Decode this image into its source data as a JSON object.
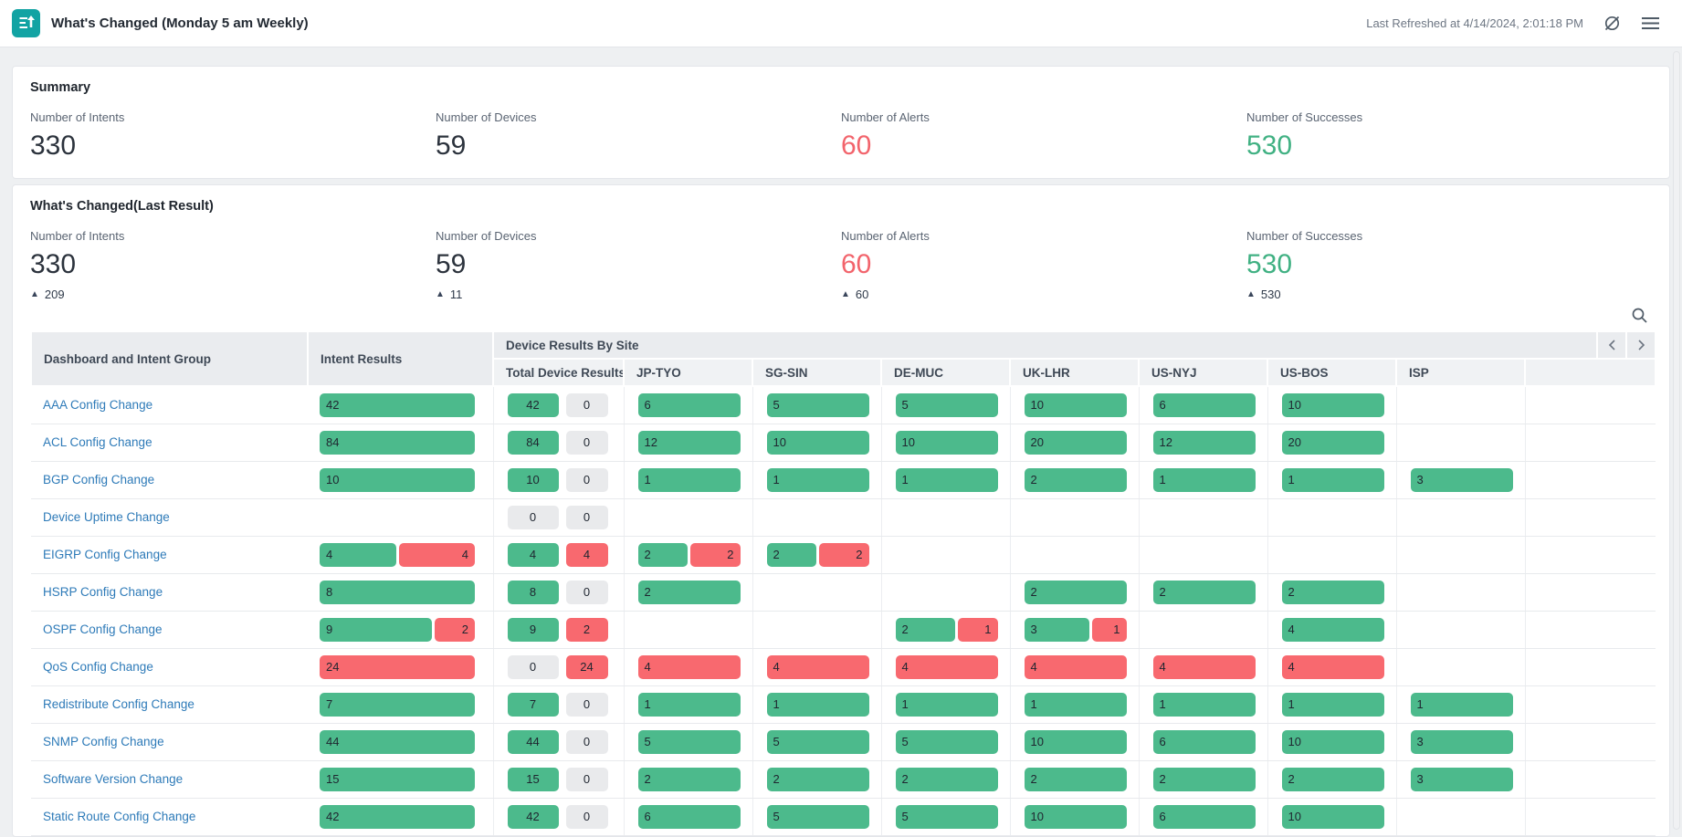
{
  "colors": {
    "teal": "#12a3a3",
    "green": "#4cba8c",
    "red": "#f8696f",
    "grey_pill": "#e9eaec",
    "link": "#2d7ab8",
    "alert": "#f2646c",
    "success": "#41b183"
  },
  "header": {
    "title": "What's Changed (Monday 5 am Weekly)",
    "last_refreshed": "Last Refreshed at 4/14/2024, 2:01:18 PM",
    "icons": [
      "report-export-icon",
      "refresh-disabled-icon",
      "hamburger-menu-icon"
    ]
  },
  "summary": {
    "title": "Summary",
    "metrics": [
      {
        "label": "Number of Intents",
        "value": "330"
      },
      {
        "label": "Number of Devices",
        "value": "59"
      },
      {
        "label": "Number of Alerts",
        "value": "60"
      },
      {
        "label": "Number of Successes",
        "value": "530"
      }
    ]
  },
  "last_result": {
    "title": "What's Changed(Last Result)",
    "delta_symbol": "▲",
    "metrics": [
      {
        "label": "Number of Intents",
        "value": "330",
        "delta": "209"
      },
      {
        "label": "Number of Devices",
        "value": "59",
        "delta": "11"
      },
      {
        "label": "Number of Alerts",
        "value": "60",
        "delta": "60"
      },
      {
        "label": "Number of Successes",
        "value": "530",
        "delta": "530"
      }
    ]
  },
  "table": {
    "columns": {
      "intent_group": "Dashboard and Intent Group",
      "intent_results": "Intent Results",
      "group": "Device Results By Site",
      "sites": [
        "Total Device Results",
        "JP-TYO",
        "SG-SIN",
        "DE-MUC",
        "UK-LHR",
        "US-NYJ",
        "US-BOS",
        "ISP"
      ]
    },
    "icons": [
      "search-icon",
      "chevron-left-icon",
      "chevron-right-icon"
    ],
    "rows": [
      {
        "name": "AAA Config Change",
        "intent": [
          42,
          0
        ],
        "total": [
          42,
          0
        ],
        "sites": [
          [
            6,
            0
          ],
          [
            5,
            0
          ],
          [
            5,
            0
          ],
          [
            10,
            0
          ],
          [
            6,
            0
          ],
          [
            10,
            0
          ],
          null
        ]
      },
      {
        "name": "ACL Config Change",
        "intent": [
          84,
          0
        ],
        "total": [
          84,
          0
        ],
        "sites": [
          [
            12,
            0
          ],
          [
            10,
            0
          ],
          [
            10,
            0
          ],
          [
            20,
            0
          ],
          [
            12,
            0
          ],
          [
            20,
            0
          ],
          null
        ]
      },
      {
        "name": "BGP Config Change",
        "intent": [
          10,
          0
        ],
        "total": [
          10,
          0
        ],
        "sites": [
          [
            1,
            0
          ],
          [
            1,
            0
          ],
          [
            1,
            0
          ],
          [
            2,
            0
          ],
          [
            1,
            0
          ],
          [
            1,
            0
          ],
          [
            3,
            0
          ]
        ]
      },
      {
        "name": "Device Uptime Change",
        "intent": null,
        "total": [
          0,
          0
        ],
        "sites": [
          null,
          null,
          null,
          null,
          null,
          null,
          null
        ]
      },
      {
        "name": "EIGRP Config Change",
        "intent": [
          4,
          4
        ],
        "total": [
          4,
          4
        ],
        "sites": [
          [
            2,
            2
          ],
          [
            2,
            2
          ],
          null,
          null,
          null,
          null,
          null
        ]
      },
      {
        "name": "HSRP Config Change",
        "intent": [
          8,
          0
        ],
        "total": [
          8,
          0
        ],
        "sites": [
          [
            2,
            0
          ],
          null,
          null,
          [
            2,
            0
          ],
          [
            2,
            0
          ],
          [
            2,
            0
          ],
          null
        ]
      },
      {
        "name": "OSPF Config Change",
        "intent": [
          9,
          2
        ],
        "total": [
          9,
          2
        ],
        "sites": [
          null,
          null,
          [
            2,
            1
          ],
          [
            3,
            1
          ],
          null,
          [
            4,
            0
          ],
          null
        ]
      },
      {
        "name": "QoS Config Change",
        "intent": [
          0,
          24
        ],
        "total": [
          0,
          24
        ],
        "sites": [
          [
            0,
            4
          ],
          [
            0,
            4
          ],
          [
            0,
            4
          ],
          [
            0,
            4
          ],
          [
            0,
            4
          ],
          [
            0,
            4
          ],
          null
        ]
      },
      {
        "name": "Redistribute Config Change",
        "intent": [
          7,
          0
        ],
        "total": [
          7,
          0
        ],
        "sites": [
          [
            1,
            0
          ],
          [
            1,
            0
          ],
          [
            1,
            0
          ],
          [
            1,
            0
          ],
          [
            1,
            0
          ],
          [
            1,
            0
          ],
          [
            1,
            0
          ]
        ]
      },
      {
        "name": "SNMP Config Change",
        "intent": [
          44,
          0
        ],
        "total": [
          44,
          0
        ],
        "sites": [
          [
            5,
            0
          ],
          [
            5,
            0
          ],
          [
            5,
            0
          ],
          [
            10,
            0
          ],
          [
            6,
            0
          ],
          [
            10,
            0
          ],
          [
            3,
            0
          ]
        ]
      },
      {
        "name": "Software Version Change",
        "intent": [
          15,
          0
        ],
        "total": [
          15,
          0
        ],
        "sites": [
          [
            2,
            0
          ],
          [
            2,
            0
          ],
          [
            2,
            0
          ],
          [
            2,
            0
          ],
          [
            2,
            0
          ],
          [
            2,
            0
          ],
          [
            3,
            0
          ]
        ]
      },
      {
        "name": "Static Route Config Change",
        "intent": [
          42,
          0
        ],
        "total": [
          42,
          0
        ],
        "sites": [
          [
            6,
            0
          ],
          [
            5,
            0
          ],
          [
            5,
            0
          ],
          [
            10,
            0
          ],
          [
            6,
            0
          ],
          [
            10,
            0
          ],
          null
        ]
      }
    ]
  }
}
